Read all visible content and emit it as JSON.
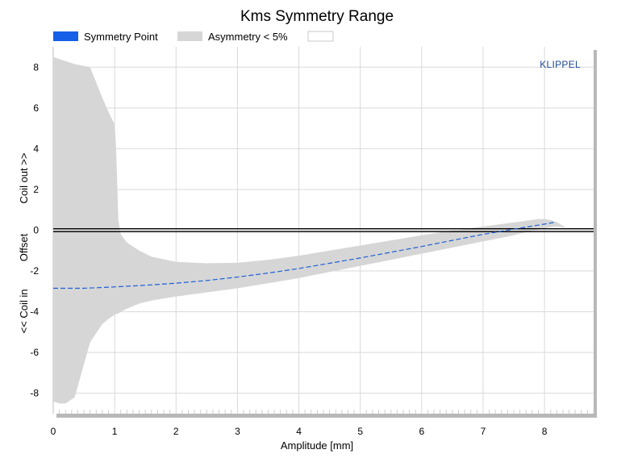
{
  "chart_data": {
    "type": "area",
    "title": "Kms Symmetry Range",
    "brand": "KLIPPEL",
    "xlabel": "Amplitude [mm]",
    "ylabel": {
      "upper": "Coil out >>",
      "middle": "Offset",
      "lower": "<< Coil in"
    },
    "xlim": [
      0,
      8.8
    ],
    "ylim": [
      -9,
      9
    ],
    "xticks": [
      0,
      1,
      2,
      3,
      4,
      5,
      6,
      7,
      8
    ],
    "yticks": [
      -8,
      -6,
      -4,
      -2,
      0,
      2,
      4,
      6,
      8
    ],
    "grid": true,
    "legend": {
      "placement": "top",
      "entries": [
        {
          "label": "Symmetry Point",
          "color": "#1660e8"
        },
        {
          "label": "Asymmetry < 5%",
          "color": "#d6d6d6"
        },
        {
          "label": "",
          "color": "#ffffff"
        }
      ]
    },
    "series": [
      {
        "name": "Symmetry Point",
        "kind": "line",
        "color": "#1d5fd6",
        "style": "dashed",
        "x": [
          0,
          0.5,
          1.0,
          1.5,
          2.0,
          2.5,
          3.0,
          3.5,
          4.0,
          4.5,
          5.0,
          5.5,
          6.0,
          6.5,
          7.0,
          7.5,
          8.0,
          8.15
        ],
        "y": [
          -2.85,
          -2.85,
          -2.78,
          -2.7,
          -2.6,
          -2.47,
          -2.3,
          -2.1,
          -1.88,
          -1.62,
          -1.36,
          -1.08,
          -0.8,
          -0.5,
          -0.2,
          0.05,
          0.3,
          0.38
        ]
      },
      {
        "name": "Asymmetry < 5%",
        "kind": "band",
        "color": "#d6d6d6",
        "x": [
          0,
          0.1,
          0.2,
          0.35,
          0.6,
          0.8,
          0.9,
          1.0,
          1.02,
          1.04,
          1.06,
          1.1,
          1.2,
          1.4,
          1.6,
          2.0,
          2.5,
          3.0,
          3.5,
          4.0,
          4.5,
          5.0,
          5.5,
          6.0,
          6.5,
          7.0,
          7.5,
          7.9,
          8.0,
          8.1,
          8.2,
          8.35
        ],
        "upper": [
          8.5,
          8.4,
          8.3,
          8.15,
          8.0,
          6.5,
          5.8,
          5.2,
          4.2,
          2.5,
          0.5,
          -0.2,
          -0.6,
          -1.0,
          -1.3,
          -1.55,
          -1.62,
          -1.6,
          -1.45,
          -1.25,
          -1.0,
          -0.75,
          -0.5,
          -0.25,
          -0.02,
          0.18,
          0.38,
          0.55,
          0.55,
          0.5,
          0.4,
          0.12
        ],
        "lower": [
          -8.4,
          -8.5,
          -8.5,
          -8.2,
          -5.5,
          -4.6,
          -4.35,
          -4.15,
          -4.12,
          -4.1,
          -4.08,
          -4.0,
          -3.85,
          -3.6,
          -3.45,
          -3.25,
          -3.05,
          -2.85,
          -2.6,
          -2.35,
          -2.05,
          -1.75,
          -1.45,
          -1.15,
          -0.85,
          -0.55,
          -0.25,
          0.05,
          0.1,
          0.15,
          0.18,
          0.12
        ]
      }
    ],
    "reference_line": {
      "y": 0,
      "color": "#000000"
    }
  }
}
